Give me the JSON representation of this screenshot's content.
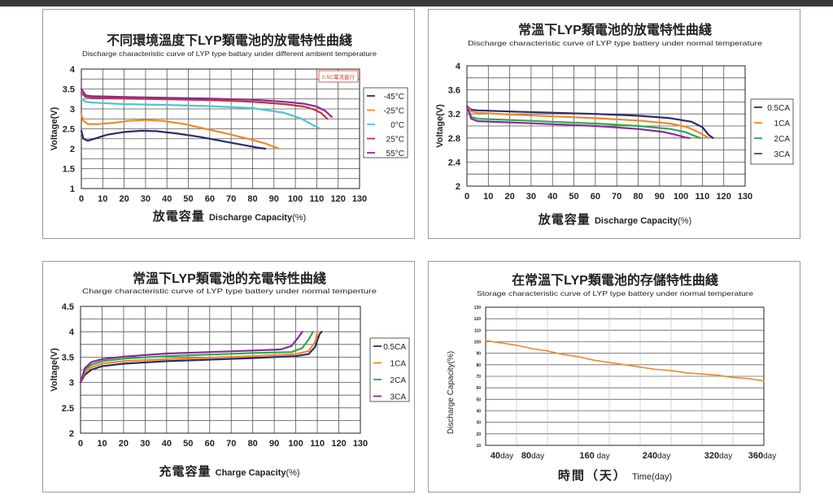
{
  "colors": {
    "grid": "#555555",
    "axis": "#222222",
    "red_label": "#d23a2a"
  },
  "chart_data": [
    {
      "id": "p1",
      "type": "line",
      "title": "不同環境溫度下LYP類電池的放電特性曲綫",
      "subtitle": "Discharge characteristic curve of LYP type battary under different ambient temperature",
      "xlabel_cn": "放電容量",
      "xlabel_en": "Discharge Capacity",
      "xlabel_unit": "(%)",
      "ylabel": "Voltage(V)",
      "xlim": [
        0,
        130
      ],
      "ylim": [
        1,
        4
      ],
      "xticks": [
        0,
        10,
        20,
        30,
        40,
        50,
        60,
        70,
        80,
        90,
        100,
        110,
        120,
        130
      ],
      "yticks": [
        1,
        1.5,
        2,
        2.5,
        3,
        3.5,
        4
      ],
      "grid": true,
      "legend_position": "right",
      "annotation": "0.5C電流進行",
      "series": [
        {
          "name": "-45°C",
          "color": "#2b2b6e",
          "points": [
            [
              0,
              2.45
            ],
            [
              1,
              2.25
            ],
            [
              3,
              2.2
            ],
            [
              6,
              2.25
            ],
            [
              12,
              2.35
            ],
            [
              20,
              2.42
            ],
            [
              28,
              2.45
            ],
            [
              35,
              2.44
            ],
            [
              45,
              2.38
            ],
            [
              55,
              2.3
            ],
            [
              65,
              2.2
            ],
            [
              75,
              2.1
            ],
            [
              82,
              2.03
            ],
            [
              86,
              2.0
            ]
          ]
        },
        {
          "name": "-25°C",
          "color": "#f08a24",
          "points": [
            [
              0,
              2.85
            ],
            [
              1,
              2.7
            ],
            [
              3,
              2.62
            ],
            [
              8,
              2.62
            ],
            [
              15,
              2.65
            ],
            [
              22,
              2.7
            ],
            [
              30,
              2.72
            ],
            [
              38,
              2.7
            ],
            [
              48,
              2.62
            ],
            [
              58,
              2.5
            ],
            [
              68,
              2.38
            ],
            [
              78,
              2.25
            ],
            [
              86,
              2.13
            ],
            [
              92,
              2.01
            ]
          ]
        },
        {
          "name": "0°C",
          "color": "#4fc3d4",
          "points": [
            [
              0,
              3.25
            ],
            [
              2,
              3.18
            ],
            [
              5,
              3.16
            ],
            [
              20,
              3.12
            ],
            [
              40,
              3.1
            ],
            [
              60,
              3.07
            ],
            [
              80,
              3.02
            ],
            [
              95,
              2.9
            ],
            [
              103,
              2.75
            ],
            [
              108,
              2.6
            ],
            [
              111,
              2.52
            ]
          ]
        },
        {
          "name": "25°C",
          "color": "#c9303a",
          "points": [
            [
              0,
              3.4
            ],
            [
              2,
              3.3
            ],
            [
              5,
              3.28
            ],
            [
              20,
              3.26
            ],
            [
              40,
              3.24
            ],
            [
              60,
              3.22
            ],
            [
              80,
              3.18
            ],
            [
              95,
              3.12
            ],
            [
              104,
              3.06
            ],
            [
              108,
              3.0
            ],
            [
              112,
              2.9
            ],
            [
              115,
              2.75
            ]
          ]
        },
        {
          "name": "55°C",
          "color": "#8a2a96",
          "points": [
            [
              0,
              3.5
            ],
            [
              2,
              3.34
            ],
            [
              5,
              3.32
            ],
            [
              20,
              3.3
            ],
            [
              40,
              3.28
            ],
            [
              60,
              3.26
            ],
            [
              80,
              3.23
            ],
            [
              95,
              3.18
            ],
            [
              104,
              3.13
            ],
            [
              110,
              3.06
            ],
            [
              114,
              2.95
            ],
            [
              117,
              2.8
            ]
          ]
        }
      ]
    },
    {
      "id": "p2",
      "type": "line",
      "title": "常溫下LYP類電池的放電特性曲綫",
      "subtitle": "Discharge characteristic curve of LYP type battery under normal temperature",
      "xlabel_cn": "放電容量",
      "xlabel_en": "Discharge Capacity",
      "xlabel_unit": "(%)",
      "ylabel": "Voltage(V)",
      "xlim": [
        0,
        130
      ],
      "ylim": [
        2,
        4
      ],
      "xticks": [
        0,
        10,
        20,
        30,
        40,
        50,
        60,
        70,
        80,
        90,
        100,
        110,
        120,
        130
      ],
      "yticks": [
        2,
        2.4,
        2.8,
        3.2,
        3.6,
        4
      ],
      "grid": true,
      "legend_position": "right",
      "series": [
        {
          "name": "0.5CA",
          "color": "#2b2b6e",
          "points": [
            [
              0,
              3.33
            ],
            [
              2,
              3.27
            ],
            [
              5,
              3.26
            ],
            [
              20,
              3.24
            ],
            [
              40,
              3.22
            ],
            [
              60,
              3.2
            ],
            [
              80,
              3.17
            ],
            [
              95,
              3.13
            ],
            [
              105,
              3.07
            ],
            [
              110,
              2.98
            ],
            [
              113,
              2.85
            ],
            [
              115,
              2.8
            ]
          ]
        },
        {
          "name": "1CA",
          "color": "#f08a24",
          "points": [
            [
              0,
              3.33
            ],
            [
              2,
              3.24
            ],
            [
              5,
              3.22
            ],
            [
              20,
              3.19
            ],
            [
              40,
              3.16
            ],
            [
              60,
              3.13
            ],
            [
              80,
              3.09
            ],
            [
              95,
              3.04
            ],
            [
              103,
              2.98
            ],
            [
              108,
              2.9
            ],
            [
              112,
              2.82
            ],
            [
              113,
              2.8
            ]
          ]
        },
        {
          "name": "2CA",
          "color": "#2fa84f",
          "points": [
            [
              0,
              3.33
            ],
            [
              2,
              3.15
            ],
            [
              5,
              3.12
            ],
            [
              20,
              3.1
            ],
            [
              40,
              3.07
            ],
            [
              60,
              3.04
            ],
            [
              80,
              3.0
            ],
            [
              95,
              2.95
            ],
            [
              102,
              2.9
            ],
            [
              106,
              2.84
            ],
            [
              109,
              2.8
            ]
          ]
        },
        {
          "name": "3CA",
          "color": "#8a2a96",
          "points": [
            [
              0,
              3.33
            ],
            [
              2,
              3.12
            ],
            [
              5,
              3.08
            ],
            [
              20,
              3.06
            ],
            [
              40,
              3.03
            ],
            [
              60,
              3.0
            ],
            [
              80,
              2.95
            ],
            [
              92,
              2.9
            ],
            [
              98,
              2.85
            ],
            [
              102,
              2.81
            ],
            [
              104,
              2.8
            ]
          ]
        }
      ]
    },
    {
      "id": "p3",
      "type": "line",
      "title": "常溫下LYP類電池的充電特性曲綫",
      "subtitle": "Charge characteristic curve of LYP type battery under normal temperture",
      "xlabel_cn": "充電容量",
      "xlabel_en": "Charge Capacity",
      "xlabel_unit": "(%)",
      "ylabel": "Voltage(V)",
      "xlim": [
        0,
        130
      ],
      "ylim": [
        2,
        4.5
      ],
      "xticks": [
        0,
        10,
        20,
        30,
        40,
        50,
        60,
        70,
        80,
        90,
        100,
        110,
        120,
        130
      ],
      "yticks": [
        2,
        2.5,
        3,
        3.5,
        4,
        4.5
      ],
      "grid": true,
      "legend_position": "right",
      "series": [
        {
          "name": "0.5CA",
          "color": "#2b2b6e",
          "points": [
            [
              0,
              3.0
            ],
            [
              2,
              3.15
            ],
            [
              5,
              3.25
            ],
            [
              10,
              3.32
            ],
            [
              20,
              3.37
            ],
            [
              40,
              3.42
            ],
            [
              60,
              3.45
            ],
            [
              80,
              3.48
            ],
            [
              100,
              3.52
            ],
            [
              106,
              3.56
            ],
            [
              109,
              3.7
            ],
            [
              111,
              3.95
            ],
            [
              112,
              4.0
            ]
          ]
        },
        {
          "name": "1CA",
          "color": "#f08a24",
          "points": [
            [
              0,
              3.0
            ],
            [
              2,
              3.2
            ],
            [
              5,
              3.3
            ],
            [
              10,
              3.37
            ],
            [
              20,
              3.42
            ],
            [
              40,
              3.46
            ],
            [
              60,
              3.49
            ],
            [
              80,
              3.52
            ],
            [
              100,
              3.56
            ],
            [
              106,
              3.62
            ],
            [
              109,
              3.8
            ],
            [
              110,
              4.0
            ]
          ]
        },
        {
          "name": "2CA",
          "color": "#2fa84f",
          "points": [
            [
              0,
              3.0
            ],
            [
              2,
              3.25
            ],
            [
              5,
              3.35
            ],
            [
              10,
              3.42
            ],
            [
              20,
              3.47
            ],
            [
              40,
              3.52
            ],
            [
              60,
              3.55
            ],
            [
              80,
              3.58
            ],
            [
              98,
              3.6
            ],
            [
              103,
              3.68
            ],
            [
              106,
              3.85
            ],
            [
              108,
              4.0
            ]
          ]
        },
        {
          "name": "3CA",
          "color": "#8a2a96",
          "points": [
            [
              0,
              3.0
            ],
            [
              2,
              3.28
            ],
            [
              5,
              3.4
            ],
            [
              10,
              3.46
            ],
            [
              20,
              3.51
            ],
            [
              40,
              3.57
            ],
            [
              60,
              3.6
            ],
            [
              80,
              3.63
            ],
            [
              93,
              3.65
            ],
            [
              98,
              3.72
            ],
            [
              101,
              3.88
            ],
            [
              103,
              4.0
            ]
          ]
        }
      ]
    },
    {
      "id": "p4",
      "type": "line",
      "title": "在常溫下LYP類電池的存儲特性曲綫",
      "subtitle": "Storage characteristic curve of LYP type battery under normal temperature",
      "xlabel_cn": "時間（天）",
      "xlabel_en": "Time(day)",
      "ylabel": "Discharge Capacity(%)",
      "xlim": [
        0,
        360
      ],
      "ylim": [
        10,
        130
      ],
      "xtick_labels": [
        {
          "value": 40,
          "num": "40",
          "unit": "day"
        },
        {
          "value": 80,
          "num": "80",
          "unit": "day"
        },
        {
          "value": 160,
          "num": "160",
          "unit": " day"
        },
        {
          "value": 240,
          "num": "240",
          "unit": "day"
        },
        {
          "value": 320,
          "num": "320",
          "unit": "day"
        },
        {
          "value": 360,
          "num": "360",
          "unit": "day"
        }
      ],
      "yticks": [
        10,
        20,
        30,
        40,
        50,
        60,
        70,
        80,
        90,
        100,
        110,
        120,
        130
      ],
      "grid": true,
      "series": [
        {
          "name": "",
          "color": "#e8892c",
          "points": [
            [
              0,
              101
            ],
            [
              20,
              99
            ],
            [
              40,
              97
            ],
            [
              60,
              94
            ],
            [
              80,
              92
            ],
            [
              100,
              89
            ],
            [
              120,
              87
            ],
            [
              140,
              84
            ],
            [
              160,
              82
            ],
            [
              180,
              80
            ],
            [
              200,
              78
            ],
            [
              220,
              76
            ],
            [
              240,
              75
            ],
            [
              260,
              73
            ],
            [
              280,
              72
            ],
            [
              300,
              71
            ],
            [
              320,
              69
            ],
            [
              340,
              68
            ],
            [
              360,
              66
            ]
          ]
        }
      ]
    }
  ]
}
